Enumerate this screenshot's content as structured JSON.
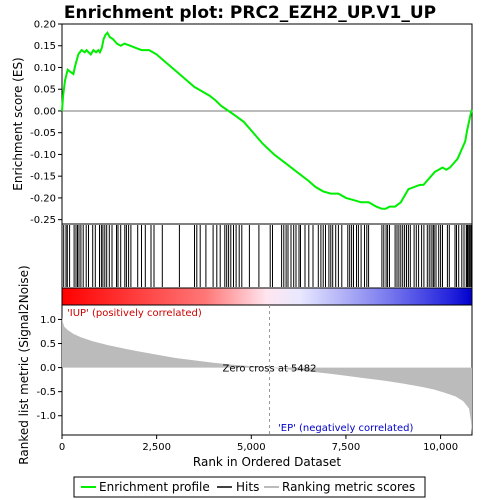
{
  "chart_data": {
    "type": "line",
    "title": "Enrichment plot: PRC2_EZH2_UP.V1_UP",
    "top_panel": {
      "ylabel": "Enrichment score (ES)",
      "ylim": [
        -0.26,
        0.2
      ],
      "yticks": [
        "0.20",
        "0.15",
        "0.10",
        "0.05",
        "0.00",
        "-0.05",
        "-0.10",
        "-0.15",
        "-0.20",
        "-0.25"
      ],
      "ytick_values": [
        0.2,
        0.15,
        0.1,
        0.05,
        0.0,
        -0.05,
        -0.1,
        -0.15,
        -0.2,
        -0.25
      ],
      "series": [
        {
          "name": "Enrichment profile",
          "color": "#00ee00",
          "x": [
            0,
            30,
            80,
            150,
            220,
            300,
            350,
            400,
            430,
            470,
            520,
            600,
            650,
            700,
            760,
            830,
            900,
            960,
            1000,
            1050,
            1100,
            1150,
            1200,
            1260,
            1350,
            1450,
            1550,
            1650,
            1800,
            1950,
            2100,
            2300,
            2500,
            2700,
            2900,
            3100,
            3300,
            3500,
            3700,
            3900,
            4050,
            4200,
            4400,
            4600,
            4800,
            5000,
            5300,
            5600,
            5900,
            6200,
            6500,
            6700,
            6900,
            7100,
            7300,
            7500,
            7700,
            7900,
            8100,
            8300,
            8450,
            8550,
            8650,
            8800,
            8950,
            9050,
            9150,
            9300,
            9450,
            9550,
            9650,
            9750,
            9850,
            9950,
            10050,
            10150,
            10250,
            10350,
            10450,
            10550,
            10650,
            10700,
            10750,
            10800,
            10830
          ],
          "y": [
            0.0,
            0.035,
            0.07,
            0.095,
            0.09,
            0.085,
            0.105,
            0.12,
            0.13,
            0.135,
            0.14,
            0.135,
            0.14,
            0.135,
            0.13,
            0.14,
            0.135,
            0.14,
            0.135,
            0.145,
            0.165,
            0.175,
            0.18,
            0.17,
            0.165,
            0.155,
            0.15,
            0.155,
            0.15,
            0.145,
            0.14,
            0.14,
            0.13,
            0.115,
            0.1,
            0.085,
            0.07,
            0.055,
            0.045,
            0.035,
            0.025,
            0.012,
            0.0,
            -0.012,
            -0.025,
            -0.045,
            -0.075,
            -0.1,
            -0.12,
            -0.14,
            -0.16,
            -0.175,
            -0.185,
            -0.19,
            -0.19,
            -0.2,
            -0.205,
            -0.21,
            -0.21,
            -0.22,
            -0.225,
            -0.225,
            -0.22,
            -0.22,
            -0.21,
            -0.195,
            -0.18,
            -0.175,
            -0.17,
            -0.17,
            -0.16,
            -0.15,
            -0.14,
            -0.135,
            -0.13,
            -0.135,
            -0.13,
            -0.12,
            -0.11,
            -0.09,
            -0.07,
            -0.045,
            -0.025,
            -0.005,
            0.003
          ]
        }
      ]
    },
    "hits_panel": {
      "hits": [
        45,
        105,
        140,
        200,
        320,
        370,
        410,
        450,
        500,
        560,
        640,
        700,
        810,
        880,
        990,
        1040,
        1080,
        1130,
        1180,
        1250,
        1320,
        1440,
        1480,
        1550,
        1660,
        1700,
        1760,
        1820,
        2000,
        2100,
        2200,
        2350,
        2430,
        2650,
        3100,
        3500,
        3560,
        3650,
        3800,
        3990,
        4090,
        4180,
        4300,
        4350,
        4400,
        4460,
        4530,
        4600,
        4680,
        4750,
        4950,
        5200,
        5500,
        5560,
        5800,
        5860,
        5920,
        5970,
        6050,
        6120,
        6180,
        6260,
        6300,
        6420,
        6520,
        6630,
        6770,
        6840,
        6900,
        6960,
        7050,
        7100,
        7150,
        7230,
        7300,
        7390,
        7550,
        7600,
        7650,
        7700,
        7780,
        7830,
        7900,
        7990,
        8050,
        8100,
        8450,
        8500,
        8560,
        8600,
        8650,
        8800,
        8850,
        8900,
        8950,
        9000,
        9050,
        9100,
        9150,
        9200,
        9300,
        9360,
        9420,
        9500,
        9560,
        9650,
        9700,
        9750,
        9800,
        9830,
        9880,
        9950,
        10000,
        10050,
        10180,
        10230,
        10380,
        10420,
        10480,
        10560,
        10620,
        10680,
        10700,
        10720,
        10750,
        10780,
        10810
      ]
    },
    "metric_panel": {
      "ylabel": "Ranked list metric (Signal2Noise)",
      "ylim": [
        -1.4,
        1.3
      ],
      "yticks": [
        "1.0",
        "0.5",
        "0.0",
        "-0.5",
        "-1.0"
      ],
      "ytick_values": [
        1.0,
        0.5,
        0.0,
        -0.5,
        -1.0
      ],
      "profile_x": [
        0,
        20,
        60,
        150,
        300,
        500,
        800,
        1200,
        1600,
        2000,
        2500,
        3000,
        3500,
        4000,
        4500,
        5000,
        5482,
        6000,
        6500,
        7000,
        7500,
        8000,
        8500,
        9000,
        9500,
        9800,
        10100,
        10400,
        10600,
        10750,
        10800,
        10830
      ],
      "profile_y": [
        1.05,
        0.95,
        0.85,
        0.78,
        0.7,
        0.63,
        0.55,
        0.47,
        0.4,
        0.34,
        0.27,
        0.2,
        0.15,
        0.1,
        0.06,
        0.03,
        0.0,
        -0.04,
        -0.08,
        -0.12,
        -0.17,
        -0.22,
        -0.27,
        -0.33,
        -0.4,
        -0.45,
        -0.52,
        -0.6,
        -0.7,
        -0.85,
        -1.1,
        -1.35
      ],
      "zero_cross": 5482,
      "zero_cross_text": "Zero cross at 5482",
      "pos_label": "'IUP' (positively correlated)",
      "neg_label": "'EP' (negatively correlated)"
    },
    "xlabel": "Rank in Ordered Dataset",
    "xlim": [
      0,
      10830
    ],
    "xticks": [
      "0",
      "2,500",
      "5,000",
      "7,500",
      "10,000"
    ],
    "xtick_values": [
      0,
      2500,
      5000,
      7500,
      10000
    ],
    "legend": {
      "placement": "bottom",
      "items": [
        {
          "label": "Enrichment profile",
          "color": "#00ee00"
        },
        {
          "label": "Hits",
          "color": "#000000"
        },
        {
          "label": "Ranking metric scores",
          "color": "#bbbbbb"
        }
      ]
    },
    "colors": {
      "pos": "#ff0000",
      "neg": "#0000ff",
      "pos_text": "#cc0000",
      "neg_text": "#0000cc",
      "metric_fill": "#bbbbbb"
    }
  }
}
